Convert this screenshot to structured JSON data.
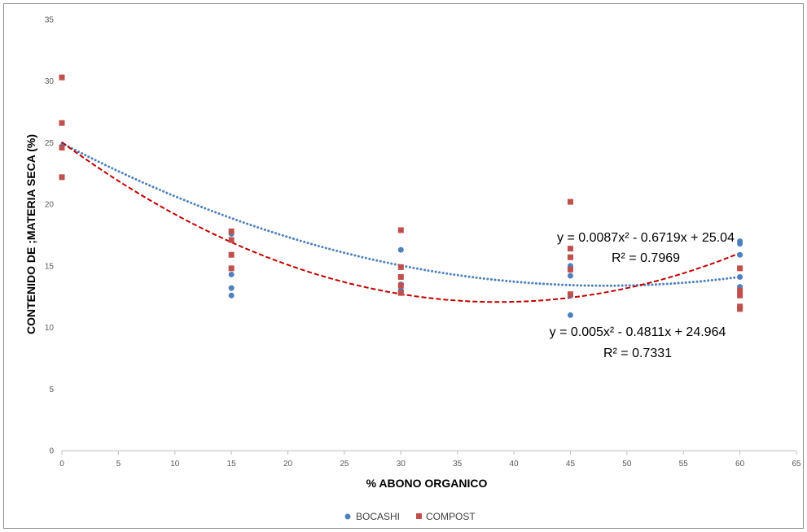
{
  "chart_data": {
    "type": "scatter",
    "title": "",
    "xlabel": "% ABONO ORGANICO",
    "ylabel": "CONTENIDO DE ;MATERIA SECA (%)",
    "xlim": [
      0,
      65
    ],
    "ylim": [
      0,
      35
    ],
    "x_ticks": [
      "0",
      "5",
      "10",
      "15",
      "20",
      "25",
      "30",
      "35",
      "40",
      "45",
      "50",
      "55",
      "60",
      "65"
    ],
    "y_ticks": [
      "0",
      "5",
      "10",
      "15",
      "20",
      "25",
      "30",
      "35"
    ],
    "grid": false,
    "legend_position": "bottom",
    "series": [
      {
        "name": "BOCASHI",
        "color": "#4f81bd",
        "marker": "circle",
        "points": [
          [
            0,
            24.7
          ],
          [
            0,
            24.6
          ],
          [
            15,
            17.6
          ],
          [
            15,
            14.3
          ],
          [
            15,
            13.2
          ],
          [
            15,
            12.6
          ],
          [
            30,
            16.3
          ],
          [
            30,
            13.5
          ],
          [
            30,
            13.0
          ],
          [
            30,
            12.9
          ],
          [
            45,
            15.0
          ],
          [
            45,
            14.2
          ],
          [
            45,
            12.6
          ],
          [
            45,
            11.0
          ],
          [
            60,
            17.0
          ],
          [
            60,
            16.8
          ],
          [
            60,
            15.9
          ],
          [
            60,
            14.1
          ],
          [
            60,
            13.3
          ]
        ],
        "trendline": {
          "a": 0.005,
          "b": -0.4811,
          "c": 24.964,
          "style": "dotted"
        },
        "equation": "y = 0.005x² - 0.4811x + 24.964",
        "r2": "R² = 0.7331"
      },
      {
        "name": "COMPOST",
        "color": "#c0504d",
        "marker": "square",
        "points": [
          [
            0,
            30.3
          ],
          [
            0,
            26.6
          ],
          [
            0,
            24.6
          ],
          [
            0,
            22.2
          ],
          [
            15,
            17.8
          ],
          [
            15,
            17.1
          ],
          [
            15,
            15.9
          ],
          [
            15,
            14.8
          ],
          [
            30,
            17.9
          ],
          [
            30,
            14.9
          ],
          [
            30,
            14.1
          ],
          [
            30,
            13.4
          ],
          [
            30,
            12.8
          ],
          [
            45,
            20.2
          ],
          [
            45,
            16.4
          ],
          [
            45,
            15.7
          ],
          [
            45,
            14.7
          ],
          [
            45,
            12.7
          ],
          [
            60,
            14.8
          ],
          [
            60,
            13.0
          ],
          [
            60,
            12.6
          ],
          [
            60,
            11.7
          ],
          [
            60,
            11.5
          ]
        ],
        "trendline": {
          "a": 0.0087,
          "b": -0.6719,
          "c": 25.04,
          "style": "dashed",
          "color": "#c00000"
        },
        "equation": "y = 0.0087x² - 0.6719x + 25.04",
        "r2": "R² = 0.7969"
      }
    ]
  }
}
